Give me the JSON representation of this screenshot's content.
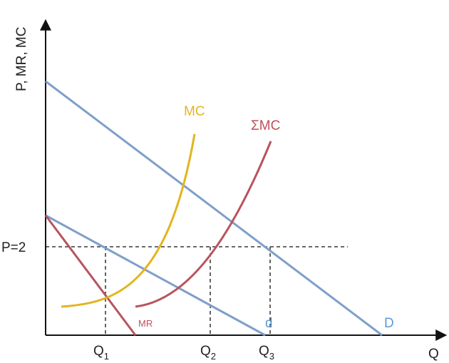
{
  "axes": {
    "y_label": "P, MR, MC",
    "x_label": "Q"
  },
  "ticks": {
    "price": "P=2",
    "q1_main": "Q",
    "q1_sub": "1",
    "q2_main": "Q",
    "q2_sub": "2",
    "q3_main": "Q",
    "q3_sub": "3"
  },
  "curves": {
    "mc": {
      "label": "MC",
      "color": "#e6b422"
    },
    "sum_mc": {
      "label": "ΣMC",
      "color": "#c0505a"
    },
    "mr": {
      "label": "MR",
      "color": "#c0505a"
    },
    "d": {
      "label": "D",
      "color": "#5b9bd5"
    },
    "d_small": {
      "label": "d",
      "color": "#5b9bd5"
    }
  },
  "colors": {
    "axis": "#111111",
    "demand_line": "#7f9fc8",
    "mr_line": "#b8545e",
    "mc_line": "#e3b41e",
    "guide": "#111111"
  }
}
